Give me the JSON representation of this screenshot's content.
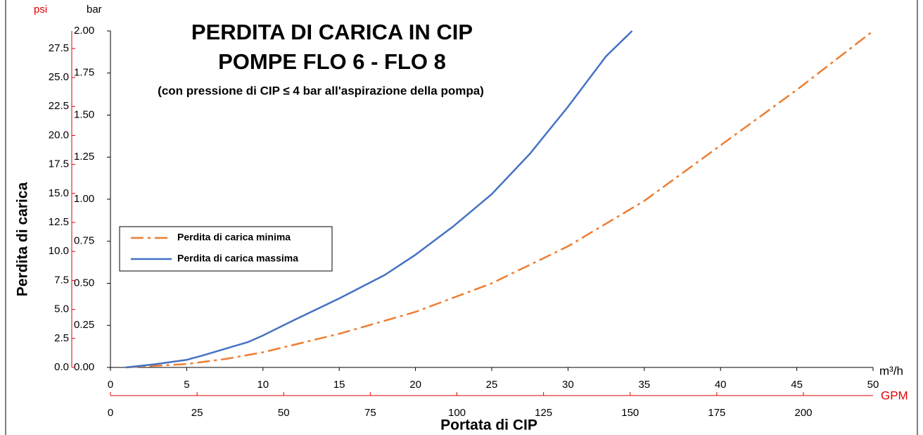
{
  "chart_data": {
    "type": "line",
    "title": [
      "PERDITA DI CARICA IN CIP",
      "POMPE FLO 6 - FLO 8"
    ],
    "subtitle": "(con pressione di CIP ≤ 4 bar all'aspirazione della pompa)",
    "y_label": "Perdita di carica",
    "x_label": "Portata di CIP",
    "y_unit": "bar",
    "y2_unit": "psi",
    "x_unit": "m³/h",
    "x2_unit": "GPM",
    "xlim": [
      0,
      50
    ],
    "xticks": [
      0,
      5,
      10,
      15,
      20,
      25,
      30,
      35,
      40,
      45,
      50
    ],
    "x2lim": [
      0,
      220.1
    ],
    "x2ticks": [
      0,
      25,
      50,
      75,
      100,
      125,
      150,
      175,
      200
    ],
    "ylim": [
      0,
      2
    ],
    "yticks": [
      {
        "value": 0,
        "label": "0.00"
      },
      {
        "value": 0.25,
        "label": "0.25"
      },
      {
        "value": 0.5,
        "label": "0.50"
      },
      {
        "value": 0.75,
        "label": "0.75"
      },
      {
        "value": 1,
        "label": "1.00"
      },
      {
        "value": 1.25,
        "label": "1.25"
      },
      {
        "value": 1.5,
        "label": "1.50"
      },
      {
        "value": 1.75,
        "label": "1.75"
      },
      {
        "value": 2,
        "label": "2.00"
      }
    ],
    "y2lim": [
      0,
      29.0075
    ],
    "y2ticks": [
      {
        "value": 0,
        "label": "0.0"
      },
      {
        "value": 2.5,
        "label": "2.5"
      },
      {
        "value": 5,
        "label": "5.0"
      },
      {
        "value": 7.5,
        "label": "7.5"
      },
      {
        "value": 10,
        "label": "10.0"
      },
      {
        "value": 12.5,
        "label": "12.5"
      },
      {
        "value": 15,
        "label": "15.0"
      },
      {
        "value": 17.5,
        "label": "17.5"
      },
      {
        "value": 20,
        "label": "20.0"
      },
      {
        "value": 22.5,
        "label": "22.5"
      },
      {
        "value": 25,
        "label": "25.0"
      },
      {
        "value": 27.5,
        "label": "27.5"
      }
    ],
    "y2_color": "#e00000",
    "series": [
      {
        "name": "Perdita di carica minima",
        "color": "#ed7d31",
        "dash": "dashdot",
        "x": [
          1,
          5,
          7.5,
          10,
          15,
          20,
          25,
          30,
          35,
          40,
          45,
          50
        ],
        "values": [
          0,
          0.02,
          0.05,
          0.09,
          0.2,
          0.33,
          0.5,
          0.72,
          0.99,
          1.32,
          1.65,
          2.0
        ]
      },
      {
        "name": "Perdita di carica massima",
        "color": "#4472c4",
        "dash": "solid",
        "x": [
          1,
          3,
          5,
          6,
          7.5,
          9,
          10,
          12,
          15,
          18,
          20,
          22.5,
          25,
          27.5,
          30,
          32.5,
          34.2
        ],
        "values": [
          0,
          0.02,
          0.045,
          0.07,
          0.11,
          0.15,
          0.19,
          0.28,
          0.41,
          0.55,
          0.67,
          0.84,
          1.03,
          1.27,
          1.55,
          1.85,
          2.0
        ]
      }
    ]
  }
}
